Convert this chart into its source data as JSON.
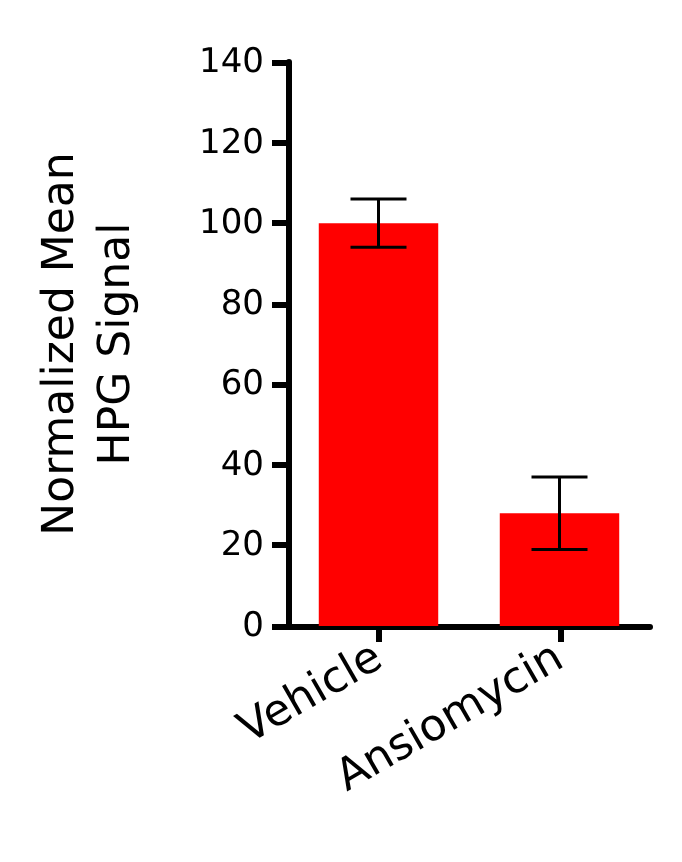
{
  "chart_data": {
    "type": "bar",
    "ylabel": "Normalized Mean\nHPG Signal",
    "categories": [
      "Vehicle",
      "Ansiomycin"
    ],
    "values": [
      100,
      28
    ],
    "color": "#ff0000",
    "errors": [
      [
        94,
        106
      ],
      [
        19,
        37
      ]
    ],
    "ylim": [
      0,
      140
    ],
    "yticks": [
      0,
      20,
      40,
      60,
      80,
      100,
      120,
      140
    ],
    "grid": false
  }
}
